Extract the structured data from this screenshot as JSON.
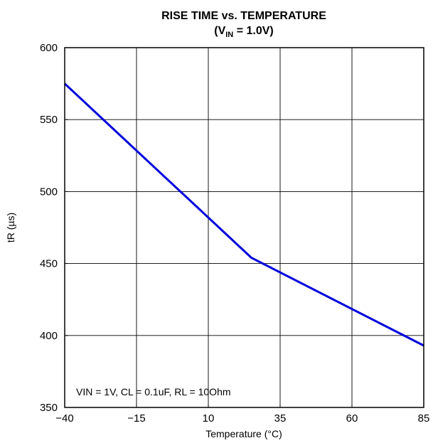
{
  "chart_data": {
    "type": "line",
    "title_main": "RISE TIME vs. TEMPERATURE",
    "title_sub": {
      "open": "(V",
      "subscript": "IN",
      "close": " = 1.0V)"
    },
    "xlabel": "Temperature (°C)",
    "ylabel": "tR (µs)",
    "xlim": [
      -40,
      85
    ],
    "ylim": [
      350,
      600
    ],
    "x_ticks": [
      -40,
      -15,
      10,
      35,
      60,
      85
    ],
    "x_tick_labels": [
      "−40",
      "−15",
      "10",
      "35",
      "60",
      "85"
    ],
    "y_ticks": [
      350,
      400,
      450,
      500,
      550,
      600
    ],
    "y_tick_labels": [
      "350",
      "400",
      "450",
      "500",
      "550",
      "600"
    ],
    "grid": true,
    "annotation": "VIN = 1V, CL = 0.1uF, RL = 10Ohm",
    "series": [
      {
        "color": "#0000dd",
        "x": [
          -40,
          25,
          85
        ],
        "y": [
          575,
          454,
          393
        ]
      }
    ]
  }
}
